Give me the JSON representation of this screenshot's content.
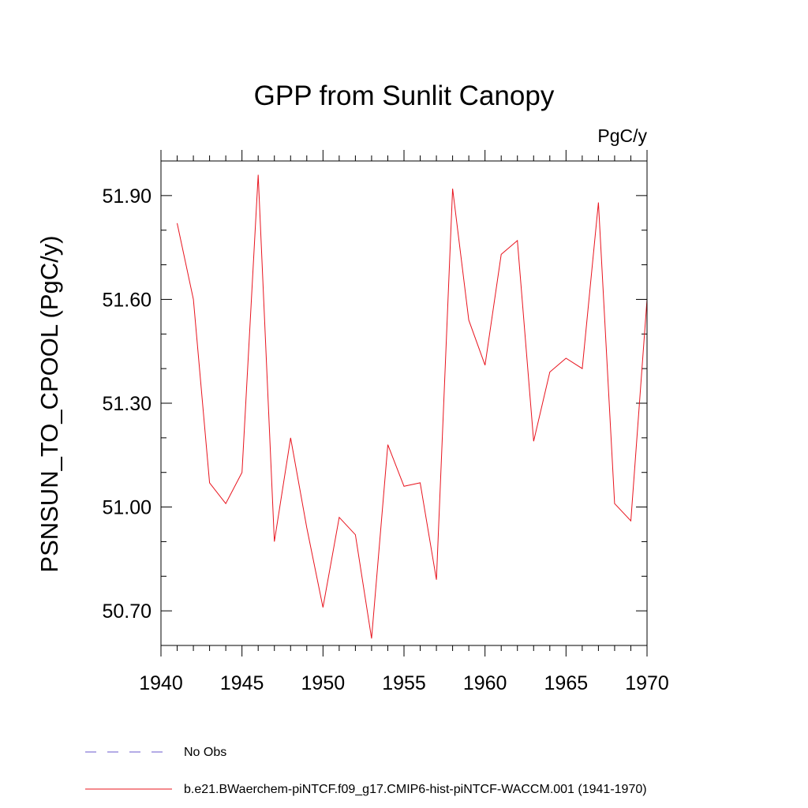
{
  "chart_data": {
    "type": "line",
    "title": "GPP from Sunlit Canopy",
    "units": "PgC/y",
    "xlabel": "",
    "ylabel": "PSNSUN_TO_CPOOL  (PgC/y)",
    "xlim": [
      1940,
      1970
    ],
    "ylim": [
      50.6,
      52.0
    ],
    "xticks": [
      1940,
      1945,
      1950,
      1955,
      1960,
      1965,
      1970
    ],
    "xtick_labels": [
      "1940",
      "1945",
      "1950",
      "1955",
      "1960",
      "1965",
      "1970"
    ],
    "yticks": [
      50.7,
      51.0,
      51.3,
      51.6,
      51.9
    ],
    "ytick_labels": [
      "50.70",
      "51.00",
      "51.30",
      "51.60",
      "51.90"
    ],
    "grid": false,
    "legend_position": "bottom",
    "legend": [
      {
        "label": "No Obs",
        "style": "dashed",
        "color": "#6a5acd"
      },
      {
        "label": "b.e21.BWaerchem-piNTCF.f09_g17.CMIP6-hist-piNTCF-WACCM.001 (1941-1970)",
        "style": "solid",
        "color": "#e8141e"
      }
    ],
    "series": [
      {
        "name": "b.e21.BWaerchem-piNTCF.f09_g17.CMIP6-hist-piNTCF-WACCM.001 (1941-1970)",
        "color": "#e8141e",
        "x": [
          1941,
          1942,
          1943,
          1944,
          1945,
          1946,
          1947,
          1948,
          1949,
          1950,
          1951,
          1952,
          1953,
          1954,
          1955,
          1956,
          1957,
          1958,
          1959,
          1960,
          1961,
          1962,
          1963,
          1964,
          1965,
          1966,
          1967,
          1968,
          1969,
          1970
        ],
        "values": [
          51.82,
          51.6,
          51.07,
          51.01,
          51.1,
          51.96,
          50.9,
          51.2,
          50.94,
          50.71,
          50.97,
          50.92,
          50.62,
          51.18,
          51.06,
          51.07,
          50.79,
          51.92,
          51.54,
          51.41,
          51.73,
          51.77,
          51.19,
          51.39,
          51.43,
          51.4,
          51.88,
          51.01,
          50.96,
          51.6
        ]
      }
    ]
  }
}
